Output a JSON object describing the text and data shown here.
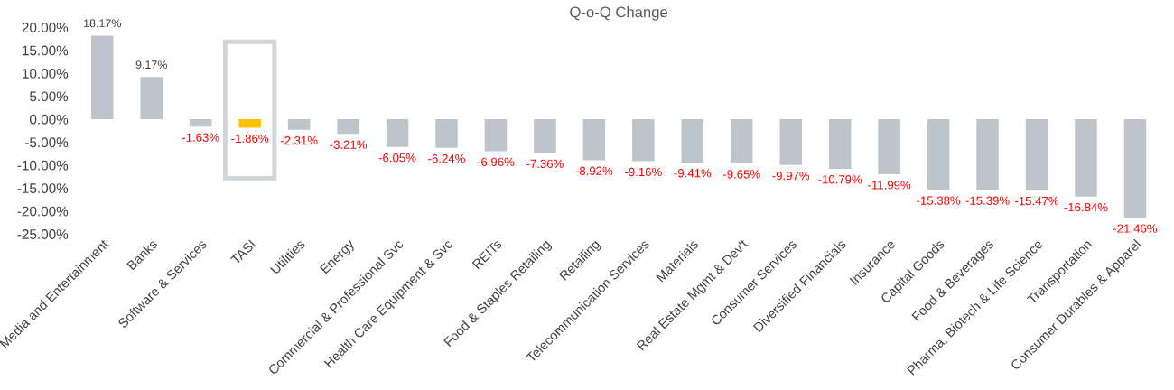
{
  "chart_data": {
    "type": "bar",
    "title": "Q-o-Q Change",
    "categories": [
      "Media and Entertainment",
      "Banks",
      "Software & Services",
      "TASI",
      "Utilities",
      "Energy",
      "Commercial & Professional Svc",
      "Health Care Equipment & Svc",
      "REITs",
      "Food & Staples Retailing",
      "Retailing",
      "Telecommunication Services",
      "Materials",
      "Real Estate Mgmt & Dev't",
      "Consumer Services",
      "Diversified Financials",
      "Insurance",
      "Capital Goods",
      "Food & Beverages",
      "Pharma, Biotech & Life Science",
      "Transportation",
      "Consumer Durables & Apparel"
    ],
    "values": [
      18.17,
      9.17,
      -1.63,
      -1.86,
      -2.31,
      -3.21,
      -6.05,
      -6.24,
      -6.96,
      -7.36,
      -8.92,
      -9.16,
      -9.41,
      -9.65,
      -9.97,
      -10.79,
      -11.99,
      -15.38,
      -15.39,
      -15.47,
      -16.84,
      -21.46
    ],
    "colors": [
      "#bdc4cc",
      "#bdc4cc",
      "#bdc4cc",
      "#ffc000",
      "#bdc4cc",
      "#bdc4cc",
      "#bdc4cc",
      "#bdc4cc",
      "#bdc4cc",
      "#bdc4cc",
      "#bdc4cc",
      "#bdc4cc",
      "#bdc4cc",
      "#bdc4cc",
      "#bdc4cc",
      "#bdc4cc",
      "#bdc4cc",
      "#bdc4cc",
      "#bdc4cc",
      "#bdc4cc",
      "#bdc4cc",
      "#bdc4cc"
    ],
    "value_labels": [
      "18.17%",
      "9.17%",
      "-1.63%",
      "-1.86%",
      "-2.31%",
      "-3.21%",
      "-6.05%",
      "-6.24%",
      "-6.96%",
      "-7.36%",
      "-8.92%",
      "-9.16%",
      "-9.41%",
      "-9.65%",
      "-9.97%",
      "-10.79%",
      "-11.99%",
      "-15.38%",
      "-15.39%",
      "-15.47%",
      "-16.84%",
      "-21.46%"
    ],
    "ylim": [
      -25,
      20
    ],
    "yticks": [
      {
        "value": -25,
        "label": "-25.00%"
      },
      {
        "value": -20,
        "label": "-20.00%"
      },
      {
        "value": -15,
        "label": "-15.00%"
      },
      {
        "value": -10,
        "label": "-10.00%"
      },
      {
        "value": -5,
        "label": "-5.00%"
      },
      {
        "value": 0,
        "label": "0.00%"
      },
      {
        "value": 5,
        "label": "5.00%"
      },
      {
        "value": 10,
        "label": "10.00%"
      },
      {
        "value": 15,
        "label": "15.00%"
      },
      {
        "value": 20,
        "label": "20.00%"
      }
    ],
    "grid": false,
    "legend": false
  }
}
